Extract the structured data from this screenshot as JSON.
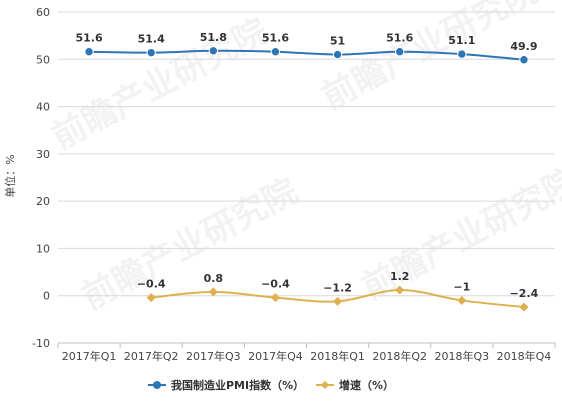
{
  "chart_data": {
    "type": "line",
    "categories": [
      "2017年Q1",
      "2017年Q2",
      "2017年Q3",
      "2017年Q4",
      "2018年Q1",
      "2018年Q2",
      "2018年Q3",
      "2018年Q4"
    ],
    "ylabel": "单位：%",
    "ylim": [
      -10,
      60
    ],
    "yticks": [
      -10,
      0,
      10,
      20,
      30,
      40,
      50,
      60
    ],
    "grid": true,
    "legend_position": "bottom",
    "series": [
      {
        "name": "我国制造业PMI指数（%）",
        "color": "#2e75b6",
        "marker": "circle",
        "values": [
          51.6,
          51.4,
          51.8,
          51.6,
          51,
          51.6,
          51.1,
          49.9
        ],
        "labels": [
          "51.6",
          "51.4",
          "51.8",
          "51.6",
          "51",
          "51.6",
          "51.1",
          "49.9"
        ]
      },
      {
        "name": "增速（%）",
        "color": "#e0b050",
        "marker": "diamond",
        "values": [
          null,
          -0.4,
          0.8,
          -0.4,
          -1.2,
          1.2,
          -1,
          -2.4
        ],
        "labels": [
          null,
          "−0.4",
          "0.8",
          "−0.4",
          "−1.2",
          "1.2",
          "−1",
          "−2.4"
        ]
      }
    ],
    "watermark": "前瞻产业研究院"
  }
}
